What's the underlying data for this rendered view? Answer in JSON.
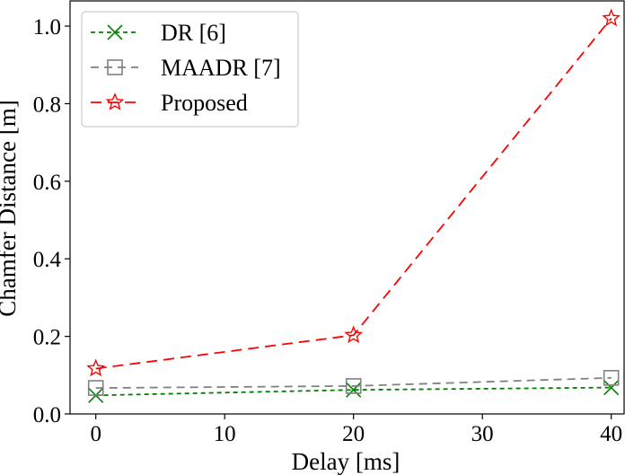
{
  "chart_data": {
    "type": "line",
    "title": "",
    "xlabel": "Delay [ms]",
    "ylabel": "Chamfer Distance [m]",
    "xlim": [
      -2,
      41
    ],
    "ylim": [
      0.0,
      1.065
    ],
    "xticks": [
      0,
      10,
      20,
      30,
      40
    ],
    "yticks": [
      0.0,
      0.2,
      0.4,
      0.6,
      0.8,
      1.0
    ],
    "xtick_labels": [
      "0",
      "10",
      "20",
      "30",
      "40"
    ],
    "ytick_labels": [
      "0.0",
      "0.2",
      "0.4",
      "0.6",
      "0.8",
      "1.0"
    ],
    "x": [
      0,
      20,
      40
    ],
    "series": [
      {
        "name": "DR [6]",
        "values": [
          0.048,
          0.062,
          0.068
        ],
        "color": "#008000",
        "marker": "x",
        "dash": "5,4"
      },
      {
        "name": "MAADR [7]",
        "values": [
          0.067,
          0.072,
          0.093
        ],
        "color": "#808080",
        "marker": "square",
        "dash": "9,6"
      },
      {
        "name": "Proposed",
        "values": [
          0.117,
          0.203,
          1.02
        ],
        "color": "#ff0000",
        "marker": "star",
        "dash": "12,7"
      }
    ],
    "legend_position": "top-left",
    "grid": false
  }
}
